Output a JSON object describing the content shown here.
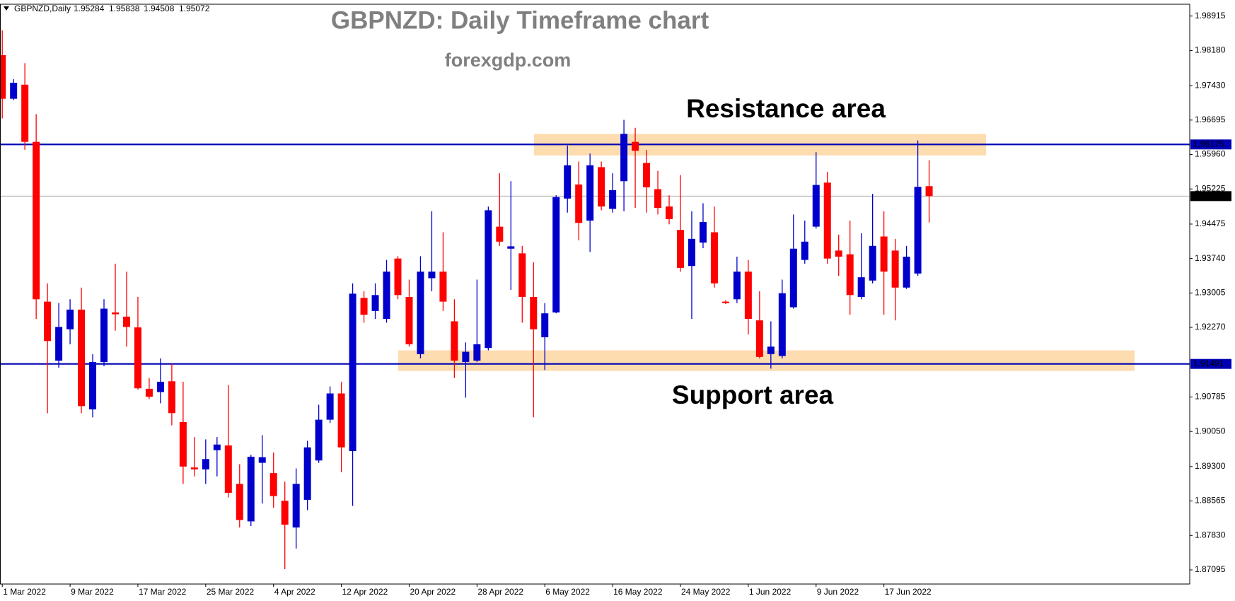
{
  "chart_data": {
    "type": "candlestick",
    "symbol": "GBPNZD,Daily",
    "title": "GBPNZD: Daily Timeframe chart",
    "subtitle": "forexgdp.com",
    "up_color": "#0000cc",
    "down_color": "#ff0000",
    "categories": [
      "1 Mar 2022",
      null,
      null,
      null,
      null,
      null,
      "9 Mar 2022",
      null,
      null,
      null,
      null,
      null,
      "17 Mar 2022",
      null,
      null,
      null,
      null,
      null,
      "25 Mar 2022",
      null,
      null,
      null,
      null,
      null,
      "4 Apr 2022",
      null,
      null,
      null,
      null,
      null,
      "12 Apr 2022",
      null,
      null,
      null,
      null,
      null,
      "20 Apr 2022",
      null,
      null,
      null,
      null,
      null,
      "28 Apr 2022",
      null,
      null,
      null,
      null,
      null,
      "6 May 2022",
      null,
      null,
      null,
      null,
      null,
      "16 May 2022",
      null,
      null,
      null,
      null,
      null,
      "24 May 2022",
      null,
      null,
      null,
      null,
      null,
      "1 Jun 2022",
      null,
      null,
      null,
      null,
      null,
      "9 Jun 2022",
      null,
      null,
      null,
      null,
      null,
      "17 Jun 2022",
      null,
      null,
      null,
      null
    ],
    "open": [
      1.9808,
      1.9715,
      1.9745,
      1.9623,
      1.9282,
      1.9156,
      1.9223,
      1.9265,
      1.9052,
      1.9153,
      1.9259,
      1.925,
      1.9227,
      1.9096,
      1.9089,
      1.9112,
      1.9025,
      1.8928,
      1.8924,
      1.8965,
      1.8975,
      1.8893,
      1.8813,
      1.8938,
      1.8916,
      1.8857,
      1.88,
      1.8859,
      1.8943,
      1.903,
      1.9086,
      1.8963,
      1.929,
      1.9262,
      1.9245,
      1.9374,
      1.9292,
      1.917,
      1.9332,
      1.9346,
      1.924,
      1.9153,
      1.9156,
      1.9183,
      1.9442,
      1.9395,
      1.9385,
      1.9292,
      1.9206,
      1.9259,
      1.9502,
      1.9532,
      1.9455,
      1.9569,
      1.948,
      1.9539,
      1.9623,
      1.9578,
      1.9522,
      1.9485,
      1.9435,
      1.9358,
      1.9408,
      1.943,
      1.9282,
      1.9287,
      1.9346,
      1.9242,
      1.917,
      1.9166,
      1.927,
      1.9371,
      1.9442,
      1.9536,
      1.9391,
      1.9383,
      1.9292,
      1.9327,
      1.9421,
      1.9391,
      1.9312,
      1.9342,
      1.95284
    ],
    "high": [
      1.9861,
      1.9757,
      1.9791,
      1.9682,
      1.9321,
      1.9279,
      1.9287,
      1.9312,
      1.917,
      1.9287,
      1.9363,
      1.9346,
      1.9292,
      1.9119,
      1.9161,
      1.9149,
      1.9111,
      1.8993,
      1.8988,
      1.8993,
      1.9104,
      1.8935,
      1.8955,
      1.8997,
      1.896,
      1.8898,
      1.8926,
      1.8985,
      1.9062,
      1.9101,
      1.9111,
      1.9321,
      1.9304,
      1.9321,
      1.9371,
      1.9379,
      1.9329,
      1.9379,
      1.9475,
      1.943,
      1.9287,
      1.9195,
      1.9329,
      1.9485,
      1.9556,
      1.9539,
      1.9401,
      1.9366,
      1.9279,
      1.9509,
      1.9615,
      1.9581,
      1.9598,
      1.9581,
      1.9556,
      1.967,
      1.9653,
      1.9606,
      1.9561,
      1.9509,
      1.9552,
      1.9475,
      1.9492,
      1.9485,
      1.9285,
      1.9378,
      1.9371,
      1.9304,
      1.924,
      1.9329,
      1.9468,
      1.9455,
      1.9601,
      1.9559,
      1.9425,
      1.9455,
      1.9428,
      1.9512,
      1.9475,
      1.9416,
      1.9401,
      1.9626,
      1.95838
    ],
    "low": [
      1.9673,
      1.9712,
      1.9606,
      1.9245,
      1.9044,
      1.9141,
      1.9191,
      1.9044,
      1.9035,
      1.9144,
      1.922,
      1.9186,
      1.9094,
      1.9074,
      1.9065,
      1.9018,
      1.8893,
      1.8909,
      1.8893,
      1.8909,
      1.8864,
      1.88,
      1.8803,
      1.8851,
      1.8842,
      1.8711,
      1.8755,
      1.8837,
      1.8938,
      1.9023,
      1.8918,
      1.8846,
      1.9237,
      1.9245,
      1.9237,
      1.9287,
      1.9186,
      1.9161,
      1.9304,
      1.9262,
      1.9119,
      1.9077,
      1.9153,
      1.9178,
      1.9401,
      1.9307,
      1.9237,
      1.9035,
      1.9136,
      1.9257,
      1.9472,
      1.9413,
      1.9388,
      1.9477,
      1.9472,
      1.9475,
      1.9482,
      1.9472,
      1.9468,
      1.9447,
      1.9346,
      1.9245,
      1.9396,
      1.9312,
      1.9277,
      1.9279,
      1.9212,
      1.9161,
      1.9139,
      1.9161,
      1.9267,
      1.9363,
      1.9438,
      1.9363,
      1.9337,
      1.9254,
      1.9287,
      1.9321,
      1.9254,
      1.9242,
      1.9309,
      1.9337,
      1.94508
    ],
    "close": [
      1.9715,
      1.9749,
      1.9623,
      1.9287,
      1.9198,
      1.9228,
      1.9265,
      1.9059,
      1.9153,
      1.9267,
      1.9255,
      1.9228,
      1.9097,
      1.9079,
      1.9111,
      1.9044,
      1.893,
      1.8924,
      1.8946,
      1.8977,
      1.8874,
      1.8816,
      1.8951,
      1.895,
      1.8867,
      1.8806,
      1.8893,
      1.8971,
      1.903,
      1.9086,
      1.8971,
      1.9299,
      1.9254,
      1.9296,
      1.9346,
      1.9296,
      1.9191,
      1.9346,
      1.9346,
      1.9282,
      1.9156,
      1.9175,
      1.9191,
      1.9477,
      1.941,
      1.94,
      1.9292,
      1.9223,
      1.9257,
      1.9505,
      1.9573,
      1.945,
      1.9573,
      1.9485,
      1.952,
      1.964,
      1.9604,
      1.9526,
      1.9482,
      1.9458,
      1.9354,
      1.9416,
      1.9452,
      1.9321,
      1.928,
      1.9346,
      1.9245,
      1.9164,
      1.9186,
      1.93,
      1.9395,
      1.941,
      1.9531,
      1.9374,
      1.9378,
      1.9296,
      1.9334,
      1.9401,
      1.9346,
      1.9312,
      1.9378,
      1.9527,
      1.95072
    ],
    "ylim": [
      1.86793,
      1.99167
    ],
    "yticks": [
      1.98915,
      {
        "value": 1.9818,
        "label": "1.98180"
      },
      {
        "value": 1.9743,
        "label": "1.97430"
      },
      1.96695,
      {
        "value": 1.9596,
        "label": "1.95960"
      },
      1.95225,
      1.94475,
      {
        "value": 1.9374,
        "label": "1.93740"
      },
      1.93005,
      {
        "value": 1.9227,
        "label": "1.92270"
      },
      1.90785,
      {
        "value": 1.9005,
        "label": "1.90050"
      },
      {
        "value": 1.893,
        "label": "1.89300"
      },
      1.88565,
      {
        "value": 1.8783,
        "label": "1.87830"
      },
      1.87095
    ],
    "lines": [
      {
        "value": 1.96175,
        "color": "#0000b4"
      },
      {
        "value": 1.95072,
        "color": "#a8a8a8"
      },
      {
        "value": 1.91491,
        "color": "#0000b4"
      }
    ],
    "zones": [
      {
        "label": "Resistance area",
        "ylim": [
          1.9594,
          1.964
        ],
        "color": "#fddcb0"
      },
      {
        "label": "Support area",
        "ylim": [
          1.9134,
          1.9178
        ],
        "color": "#fddcb0"
      }
    ]
  }
}
